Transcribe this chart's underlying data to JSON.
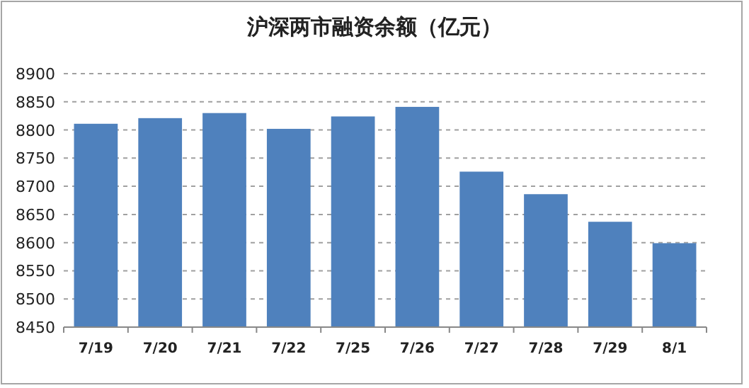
{
  "chart_data": {
    "type": "bar",
    "title": "沪深两市融资余额（亿元）",
    "categories": [
      "7/19",
      "7/20",
      "7/21",
      "7/22",
      "7/25",
      "7/26",
      "7/27",
      "7/28",
      "7/29",
      "8/1"
    ],
    "values": [
      8811,
      8821,
      8830,
      8802,
      8824,
      8841,
      8726,
      8686,
      8637,
      8599
    ],
    "color": "#4f81bd",
    "ylim": [
      8450,
      8900
    ],
    "yticks": [
      8450,
      8500,
      8550,
      8600,
      8650,
      8700,
      8750,
      8800,
      8850,
      8900
    ],
    "grid": "y"
  }
}
